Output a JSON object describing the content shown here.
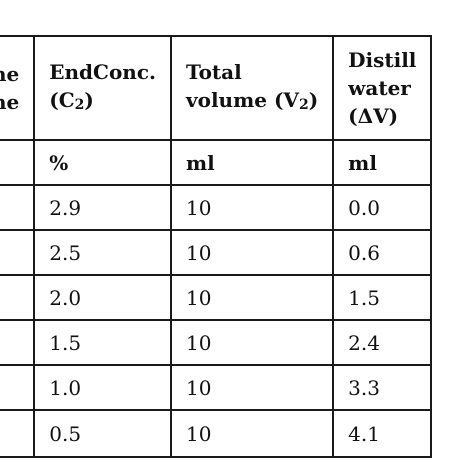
{
  "table": {
    "headers": {
      "col0_line1": "Brine",
      "col0_line2": "ne",
      "col1_word1": "End",
      "col1_word2": "Conc.",
      "col1_line2_open": "(C",
      "col1_sub": "2",
      "col1_line2_close": ")",
      "col2_line1": "Total",
      "col2_line2_open": "volume (V",
      "col2_sub": "2",
      "col2_line2_close": ")",
      "col3_line1": "Distill",
      "col3_line2": "water",
      "col3_line3": "(ΔV)"
    },
    "units": [
      "",
      "%",
      "ml",
      "ml"
    ],
    "rows": [
      [
        "",
        "2.9",
        "10",
        "0.0"
      ],
      [
        "",
        "2.5",
        "10",
        "0.6"
      ],
      [
        "",
        "2.0",
        "10",
        "1.5"
      ],
      [
        "",
        "1.5",
        "10",
        "2.4"
      ],
      [
        "",
        "1.0",
        "10",
        "3.3"
      ],
      [
        "",
        "0.5",
        "10",
        "4.1"
      ]
    ]
  }
}
